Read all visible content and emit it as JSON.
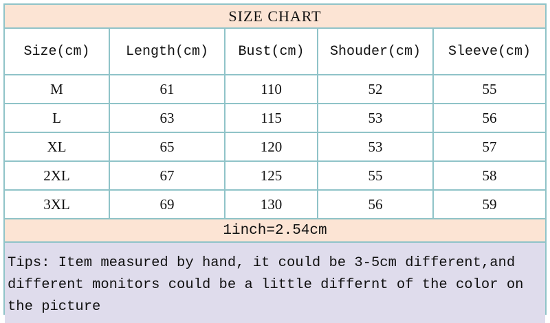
{
  "title": "SIZE CHART",
  "headers": [
    "Size(cm)",
    "Length(cm)",
    "Bust(cm)",
    "Shouder(cm)",
    "Sleeve(cm)"
  ],
  "rows": [
    [
      "M",
      "61",
      "110",
      "52",
      "55"
    ],
    [
      "L",
      "63",
      "115",
      "53",
      "56"
    ],
    [
      "XL",
      "65",
      "120",
      "53",
      "57"
    ],
    [
      "2XL",
      "67",
      "125",
      "55",
      "58"
    ],
    [
      "3XL",
      "69",
      "130",
      "56",
      "59"
    ]
  ],
  "conversion": "1inch=2.54cm",
  "tips": "Tips: Item measured by hand, it could be 3-5cm different,and different monitors could be a little differnt of the color on the picture",
  "colors": {
    "border": "#8fc3c8",
    "header_bg": "#fce4d4",
    "tips_bg": "#dfdcec"
  }
}
